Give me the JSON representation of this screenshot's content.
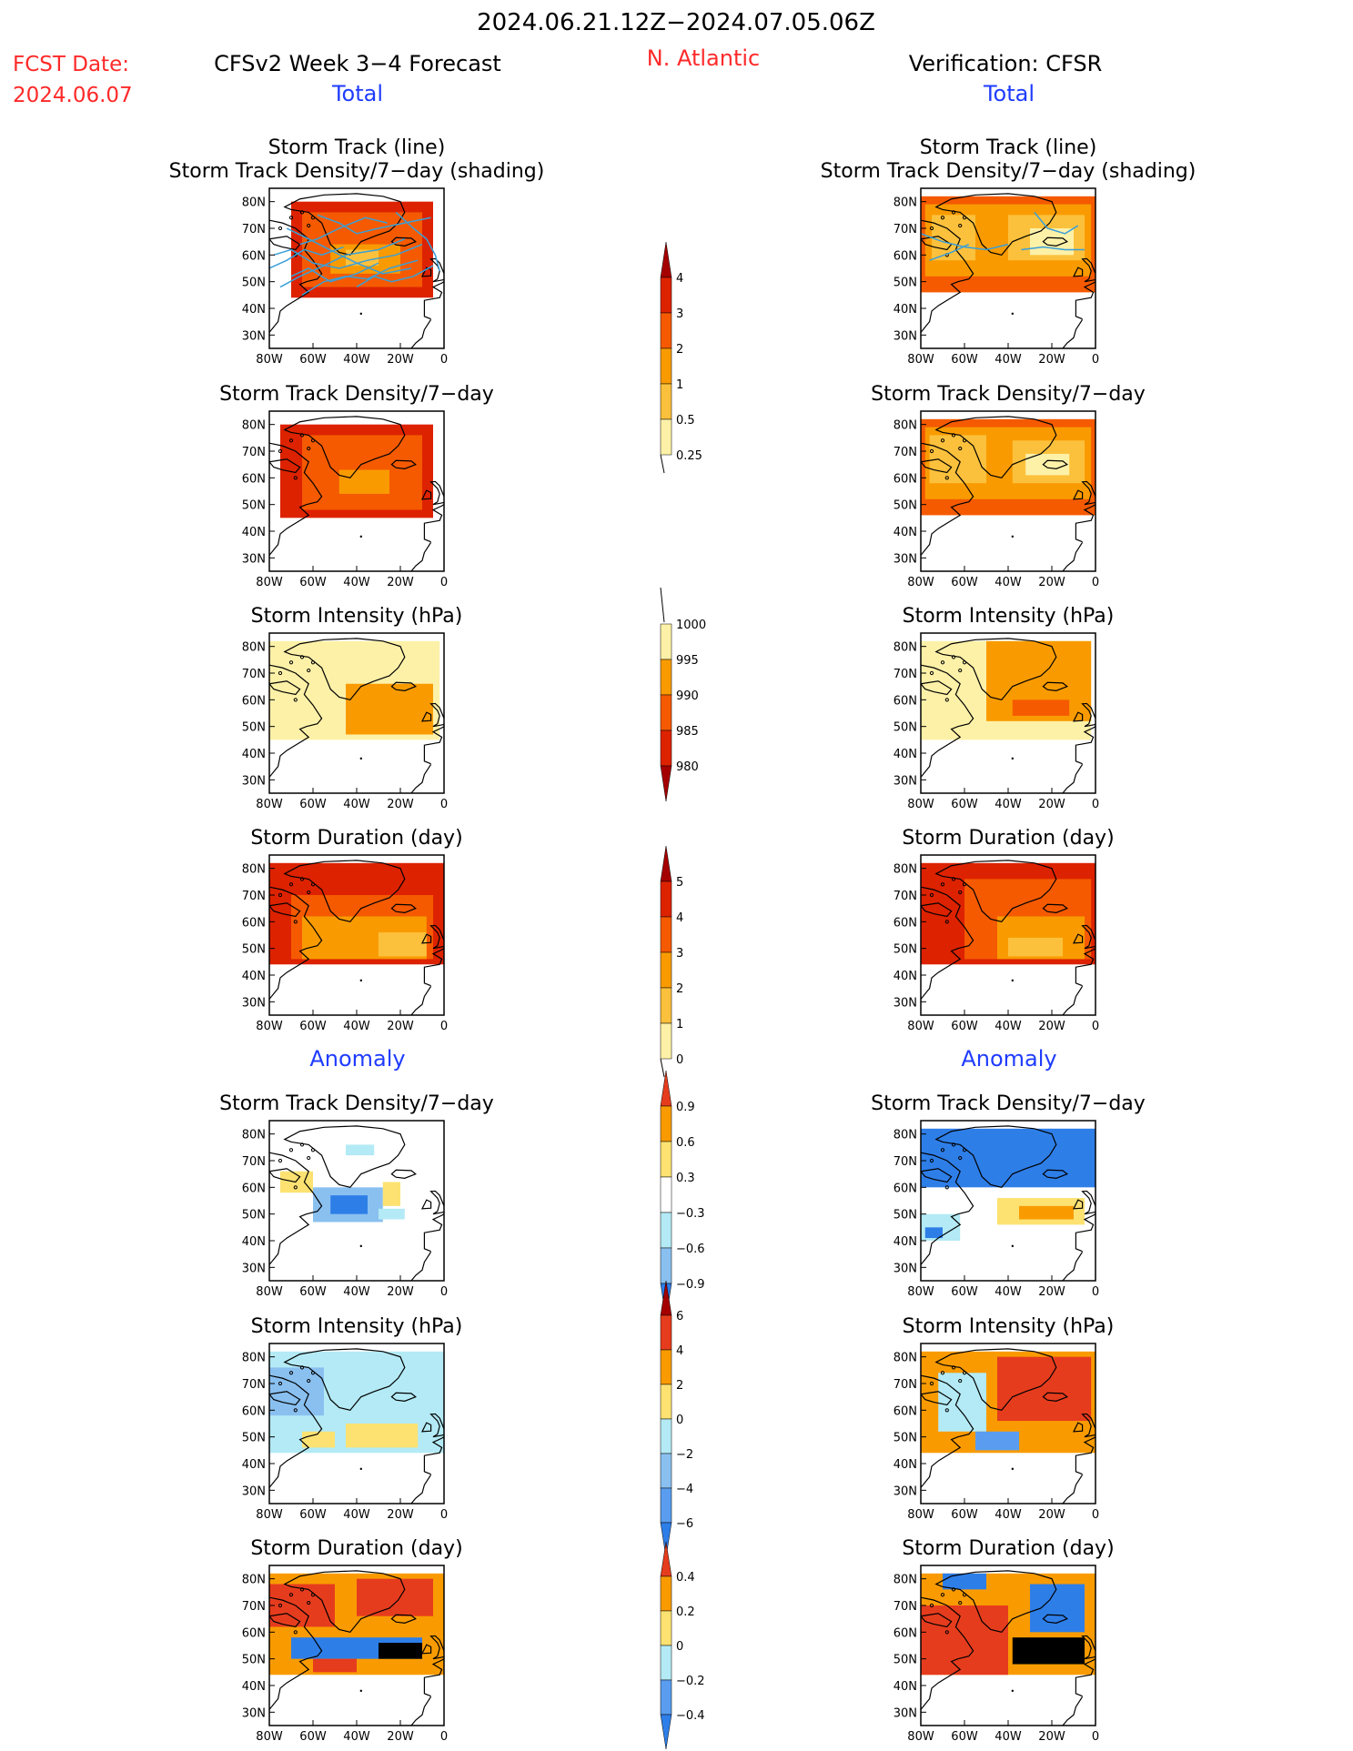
{
  "header": {
    "date_range": "2024.06.21.12Z−2024.07.05.06Z",
    "fcst_date_label": "FCST Date:",
    "fcst_date_value": "2024.06.07",
    "model_title": "CFSv2 Week 3−4 Forecast",
    "region": "N. Atlantic",
    "verification_title": "Verification: CFSR",
    "total_label": "Total",
    "anomaly_label": "Anomaly"
  },
  "colors": {
    "text_red": "#ff2a2a",
    "text_blue": "#1f3cff",
    "track_line": "#3a9fd8",
    "land_outline": "#000000"
  },
  "axes": {
    "x_ticks": [
      "80W",
      "60W",
      "40W",
      "20W",
      "0"
    ],
    "y_ticks": [
      "80N",
      "70N",
      "60N",
      "50N",
      "40N",
      "30N"
    ],
    "lon_range": [
      -80,
      0
    ],
    "lat_range": [
      25,
      85
    ]
  },
  "chart_data": [
    {
      "type": "heatmap",
      "panel": "forecast-total-track",
      "title_line1": "Storm Track (line)",
      "title_line2": "Storm Track Density/7−day (shading)",
      "colorbar": "density",
      "regions": [
        {
          "lon": [
            -70,
            -5
          ],
          "lat": [
            44,
            80
          ],
          "level": 1
        },
        {
          "lon": [
            -65,
            -10
          ],
          "lat": [
            48,
            76
          ],
          "level": 2
        },
        {
          "lon": [
            -52,
            -20
          ],
          "lat": [
            53,
            64
          ],
          "level": 3
        },
        {
          "lon": [
            -45,
            -30
          ],
          "lat": [
            56,
            62
          ],
          "level": 4
        }
      ],
      "tracks": true
    },
    {
      "type": "heatmap",
      "panel": "verification-total-track",
      "title_line1": "Storm Track (line)",
      "title_line2": "Storm Track Density/7−day (shading)",
      "colorbar": "density",
      "regions": [
        {
          "lon": [
            -80,
            0
          ],
          "lat": [
            46,
            82
          ],
          "level": 2
        },
        {
          "lon": [
            -78,
            -2
          ],
          "lat": [
            52,
            79
          ],
          "level": 3
        },
        {
          "lon": [
            -75,
            -55
          ],
          "lat": [
            58,
            75
          ],
          "level": 4
        },
        {
          "lon": [
            -40,
            -5
          ],
          "lat": [
            58,
            75
          ],
          "level": 4
        },
        {
          "lon": [
            -30,
            -10
          ],
          "lat": [
            60,
            70
          ],
          "level": 5
        }
      ],
      "tracks": true
    },
    {
      "type": "heatmap",
      "panel": "forecast-total-density",
      "title_line1": "",
      "title_line2": "Storm Track Density/7−day",
      "colorbar": "density",
      "regions": [
        {
          "lon": [
            -75,
            -5
          ],
          "lat": [
            45,
            80
          ],
          "level": 1
        },
        {
          "lon": [
            -65,
            -10
          ],
          "lat": [
            48,
            76
          ],
          "level": 2
        },
        {
          "lon": [
            -48,
            -25
          ],
          "lat": [
            54,
            63
          ],
          "level": 3
        }
      ],
      "tracks": false
    },
    {
      "type": "heatmap",
      "panel": "verification-total-density",
      "title_line1": "",
      "title_line2": "Storm Track Density/7−day",
      "colorbar": "density",
      "regions": [
        {
          "lon": [
            -80,
            0
          ],
          "lat": [
            46,
            82
          ],
          "level": 2
        },
        {
          "lon": [
            -78,
            -2
          ],
          "lat": [
            52,
            79
          ],
          "level": 3
        },
        {
          "lon": [
            -76,
            -50
          ],
          "lat": [
            58,
            76
          ],
          "level": 4
        },
        {
          "lon": [
            -38,
            -5
          ],
          "lat": [
            58,
            74
          ],
          "level": 4
        },
        {
          "lon": [
            -32,
            -12
          ],
          "lat": [
            61,
            69
          ],
          "level": 5
        }
      ],
      "tracks": false
    },
    {
      "type": "heatmap",
      "panel": "forecast-total-intensity",
      "title_line1": "",
      "title_line2": "Storm Intensity (hPa)",
      "colorbar": "intensity",
      "regions": [
        {
          "lon": [
            -80,
            -2
          ],
          "lat": [
            45,
            82
          ],
          "level": 0
        },
        {
          "lon": [
            -45,
            -5
          ],
          "lat": [
            47,
            66
          ],
          "level": 1
        }
      ],
      "tracks": false
    },
    {
      "type": "heatmap",
      "panel": "verification-total-intensity",
      "title_line1": "",
      "title_line2": "Storm Intensity (hPa)",
      "colorbar": "intensity",
      "regions": [
        {
          "lon": [
            -80,
            -2
          ],
          "lat": [
            45,
            82
          ],
          "level": 0
        },
        {
          "lon": [
            -50,
            -2
          ],
          "lat": [
            52,
            82
          ],
          "level": 1
        },
        {
          "lon": [
            -38,
            -12
          ],
          "lat": [
            54,
            60
          ],
          "level": 2
        }
      ],
      "tracks": false
    },
    {
      "type": "heatmap",
      "panel": "forecast-total-duration",
      "title_line1": "",
      "title_line2": "Storm Duration (day)",
      "colorbar": "duration",
      "regions": [
        {
          "lon": [
            -80,
            0
          ],
          "lat": [
            44,
            82
          ],
          "level": 1
        },
        {
          "lon": [
            -70,
            -5
          ],
          "lat": [
            46,
            70
          ],
          "level": 2
        },
        {
          "lon": [
            -65,
            -8
          ],
          "lat": [
            46,
            62
          ],
          "level": 3
        },
        {
          "lon": [
            -30,
            -8
          ],
          "lat": [
            47,
            56
          ],
          "level": 4
        }
      ],
      "tracks": false
    },
    {
      "type": "heatmap",
      "panel": "verification-total-duration",
      "title_line1": "",
      "title_line2": "Storm Duration (day)",
      "colorbar": "duration",
      "regions": [
        {
          "lon": [
            -80,
            0
          ],
          "lat": [
            44,
            82
          ],
          "level": 1
        },
        {
          "lon": [
            -60,
            -2
          ],
          "lat": [
            46,
            76
          ],
          "level": 2
        },
        {
          "lon": [
            -45,
            -5
          ],
          "lat": [
            46,
            62
          ],
          "level": 3
        },
        {
          "lon": [
            -40,
            -15
          ],
          "lat": [
            47,
            54
          ],
          "level": 4
        }
      ],
      "tracks": false
    },
    {
      "type": "heatmap",
      "panel": "forecast-anomaly-density",
      "title_line1": "",
      "title_line2": "Storm Track Density/7−day",
      "colorbar": "anom_density",
      "regions": [
        {
          "lon": [
            -45,
            -32
          ],
          "lat": [
            72,
            76
          ],
          "level": 4
        },
        {
          "lon": [
            -60,
            -28
          ],
          "lat": [
            47,
            60
          ],
          "level": 5
        },
        {
          "lon": [
            -52,
            -35
          ],
          "lat": [
            50,
            57
          ],
          "level": 6
        },
        {
          "lon": [
            -75,
            -60
          ],
          "lat": [
            58,
            66
          ],
          "level": 2
        },
        {
          "lon": [
            -28,
            -20
          ],
          "lat": [
            53,
            62
          ],
          "level": 2
        },
        {
          "lon": [
            -30,
            -18
          ],
          "lat": [
            48,
            52
          ],
          "level": 4
        }
      ],
      "tracks": false
    },
    {
      "type": "heatmap",
      "panel": "verification-anomaly-density",
      "title_line1": "",
      "title_line2": "Storm Track Density/7−day",
      "colorbar": "anom_density",
      "regions": [
        {
          "lon": [
            -80,
            0
          ],
          "lat": [
            60,
            82
          ],
          "level": 6
        },
        {
          "lon": [
            -45,
            -5
          ],
          "lat": [
            46,
            56
          ],
          "level": 2
        },
        {
          "lon": [
            -35,
            -10
          ],
          "lat": [
            48,
            53
          ],
          "level": 1
        },
        {
          "lon": [
            -80,
            -62
          ],
          "lat": [
            40,
            50
          ],
          "level": 4
        },
        {
          "lon": [
            -78,
            -70
          ],
          "lat": [
            41,
            45
          ],
          "level": 6
        }
      ],
      "tracks": false
    },
    {
      "type": "heatmap",
      "panel": "forecast-anomaly-intensity",
      "title_line1": "",
      "title_line2": "Storm Intensity (hPa)",
      "colorbar": "anom_intensity",
      "regions": [
        {
          "lon": [
            -80,
            0
          ],
          "lat": [
            44,
            82
          ],
          "level": 4
        },
        {
          "lon": [
            -80,
            -55
          ],
          "lat": [
            58,
            76
          ],
          "level": 5
        },
        {
          "lon": [
            -45,
            -12
          ],
          "lat": [
            46,
            55
          ],
          "level": 3
        },
        {
          "lon": [
            -65,
            -50
          ],
          "lat": [
            46,
            52
          ],
          "level": 3
        }
      ],
      "tracks": false
    },
    {
      "type": "heatmap",
      "panel": "verification-anomaly-intensity",
      "title_line1": "",
      "title_line2": "Storm Intensity (hPa)",
      "colorbar": "anom_intensity",
      "regions": [
        {
          "lon": [
            -80,
            0
          ],
          "lat": [
            44,
            82
          ],
          "level": 2
        },
        {
          "lon": [
            -45,
            -2
          ],
          "lat": [
            56,
            80
          ],
          "level": 1
        },
        {
          "lon": [
            -72,
            -50
          ],
          "lat": [
            52,
            74
          ],
          "level": 4
        },
        {
          "lon": [
            -55,
            -35
          ],
          "lat": [
            45,
            52
          ],
          "level": 6
        },
        {
          "lon": [
            -32,
            -10
          ],
          "lat": [
            49,
            54
          ],
          "level": 2
        }
      ],
      "tracks": false
    },
    {
      "type": "heatmap",
      "panel": "forecast-anomaly-duration",
      "title_line1": "",
      "title_line2": "Storm Duration (day)",
      "colorbar": "anom_duration",
      "regions": [
        {
          "lon": [
            -80,
            0
          ],
          "lat": [
            44,
            82
          ],
          "level": 1
        },
        {
          "lon": [
            -80,
            -50
          ],
          "lat": [
            62,
            78
          ],
          "level": 0
        },
        {
          "lon": [
            -40,
            -5
          ],
          "lat": [
            66,
            80
          ],
          "level": 0
        },
        {
          "lon": [
            -70,
            -10
          ],
          "lat": [
            50,
            58
          ],
          "level": 5
        },
        {
          "lon": [
            -30,
            -10
          ],
          "lat": [
            50,
            56
          ],
          "level": 6
        },
        {
          "lon": [
            -60,
            -40
          ],
          "lat": [
            45,
            50
          ],
          "level": 0
        }
      ],
      "tracks": false
    },
    {
      "type": "heatmap",
      "panel": "verification-anomaly-duration",
      "title_line1": "",
      "title_line2": "Storm Duration (day)",
      "colorbar": "anom_duration",
      "regions": [
        {
          "lon": [
            -80,
            0
          ],
          "lat": [
            44,
            82
          ],
          "level": 1
        },
        {
          "lon": [
            -80,
            -40
          ],
          "lat": [
            44,
            70
          ],
          "level": 0
        },
        {
          "lon": [
            -38,
            -5
          ],
          "lat": [
            48,
            58
          ],
          "level": 6
        },
        {
          "lon": [
            -30,
            -5
          ],
          "lat": [
            60,
            78
          ],
          "level": 5
        },
        {
          "lon": [
            -70,
            -50
          ],
          "lat": [
            76,
            82
          ],
          "level": 5
        }
      ],
      "tracks": false
    }
  ],
  "colorbars": {
    "density": {
      "labels": [
        "4",
        "3",
        "2",
        "1",
        "0.5",
        "0.25"
      ],
      "colors": [
        "#a50000",
        "#dd2200",
        "#f55a00",
        "#f99b00",
        "#fcc13c",
        "#fdf1a8"
      ],
      "open_top": true,
      "open_bottom": false
    },
    "intensity": {
      "labels": [
        "1000",
        "995",
        "990",
        "985",
        "980"
      ],
      "colors": [
        "#fdf1a8",
        "#f99b00",
        "#f55a00",
        "#dd2200",
        "#a50000"
      ],
      "open_top": false,
      "open_bottom": true
    },
    "duration": {
      "labels": [
        "5",
        "4",
        "3",
        "2",
        "1",
        "0"
      ],
      "colors": [
        "#a50000",
        "#dd2200",
        "#f55a00",
        "#f99b00",
        "#fcc13c",
        "#fdf1a8"
      ],
      "open_top": true,
      "open_bottom": false
    },
    "anom_density": {
      "labels": [
        "0.9",
        "0.6",
        "0.3",
        "−0.3",
        "−0.6",
        "−0.9"
      ],
      "colors": [
        "#e63c1e",
        "#f99b00",
        "#fde272",
        "#ffffff",
        "#b3eaf5",
        "#8ac0f0",
        "#2e7ee8"
      ],
      "open_top": true,
      "open_bottom": true
    },
    "anom_intensity": {
      "labels": [
        "6",
        "4",
        "2",
        "0",
        "−2",
        "−4",
        "−6"
      ],
      "colors": [
        "#a50000",
        "#e63c1e",
        "#f99b00",
        "#fde272",
        "#b3eaf5",
        "#8ac0f0",
        "#5a9df0",
        "#2e7ee8"
      ],
      "open_top": true,
      "open_bottom": true
    },
    "anom_duration": {
      "labels": [
        "0.4",
        "0.2",
        "0",
        "−0.2",
        "−0.4"
      ],
      "colors": [
        "#e63c1e",
        "#f99b00",
        "#fde272",
        "#b3eaf5",
        "#5a9df0",
        "#2e7ee8"
      ],
      "open_top": true,
      "open_bottom": true
    }
  }
}
